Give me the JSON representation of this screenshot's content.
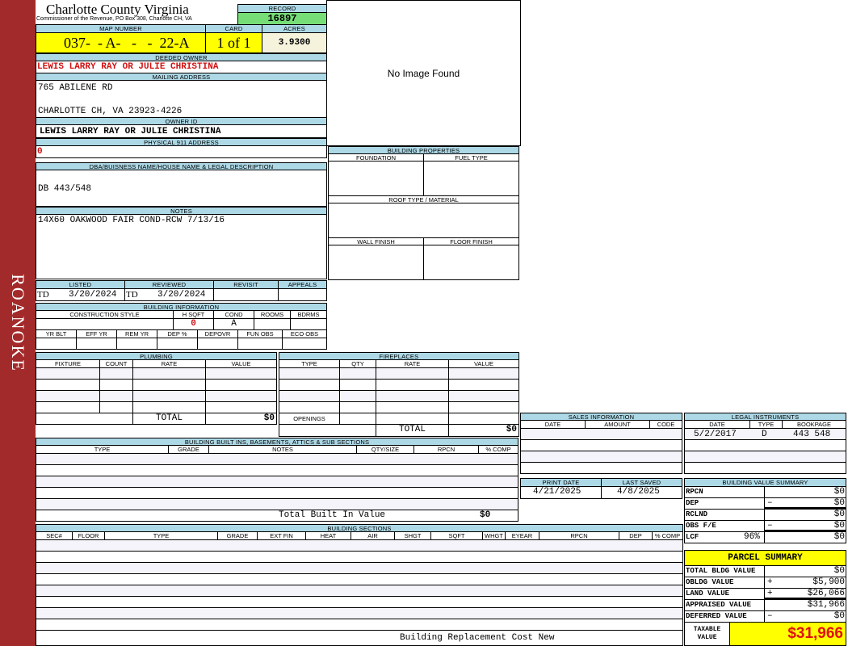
{
  "sidebar": {
    "label": "ROANOKE",
    "color": "#a32a2a"
  },
  "header": {
    "county": "Charlotte County Virginia",
    "office": "Commissioner of the Revenue, PO Box 308, Charlotte CH, VA"
  },
  "record": {
    "label": "RECORD",
    "value": "16897"
  },
  "map": {
    "label": "MAP NUMBER",
    "value": "037-  - A-   -   -  22-A"
  },
  "card": {
    "label": "CARD",
    "value": "1 of 1"
  },
  "acres": {
    "label": "ACRES",
    "value": "3.9300"
  },
  "deeded_owner": {
    "label": "DEEDED OWNER",
    "value": "LEWIS LARRY RAY OR JULIE CHRISTINA"
  },
  "mailing": {
    "label": "MAILING ADDRESS",
    "line1": "765 ABILENE RD",
    "line2": "CHARLOTTE CH, VA 23923-4226"
  },
  "owner_id": {
    "label": "OWNER ID",
    "value": "LEWIS LARRY RAY OR JULIE CHRISTINA"
  },
  "physical": {
    "label": "PHYSICAL 911 ADDRESS",
    "value": "0"
  },
  "image": {
    "text": "No Image Found"
  },
  "dba": {
    "label": "DBA/BUISNESS NAME/HOUSE NAME & LEGAL DESCRIPTION",
    "value": "DB 443/548"
  },
  "notes": {
    "label": "NOTES",
    "value": "14X60 OAKWOOD FAIR COND-RCW 7/13/16"
  },
  "building_properties": {
    "label": "BUILDING PROPERTIES",
    "foundation": "FOUNDATION",
    "fuel": "FUEL TYPE",
    "roof": "ROOF TYPE / MATERIAL",
    "wall": "WALL FINISH",
    "floor": "FLOOR FINISH"
  },
  "dates": {
    "listed_label": "LISTED",
    "listed_by": "TD",
    "listed": "3/20/2024",
    "reviewed_label": "REVIEWED",
    "reviewed_by": "TD",
    "reviewed": "3/20/2024",
    "revisit_label": "REVISIT",
    "appeals_label": "APPEALS"
  },
  "building_info": {
    "label": "BUILDING INFORMATION",
    "cols1": [
      "CONSTRUCTION STYLE",
      "H SQFT",
      "COND",
      "ROOMS",
      "BDRMS"
    ],
    "hsqft": "0",
    "cond": "A",
    "cols2": [
      "YR BLT",
      "EFF YR",
      "REM YR",
      "DEP %",
      "DEPOVR",
      "FUN OBS",
      "ECO OBS"
    ]
  },
  "plumbing": {
    "label": "PLUMBING",
    "cols": [
      "FIXTURE",
      "COUNT",
      "RATE",
      "VALUE"
    ],
    "total_label": "TOTAL",
    "total": "$0"
  },
  "fireplaces": {
    "label": "FIREPLACES",
    "cols": [
      "TYPE",
      "QTY",
      "RATE",
      "VALUE"
    ],
    "openings": "OPENINGS",
    "total_label": "TOTAL",
    "total": "$0"
  },
  "builtins": {
    "label": "BUILDING BUILT INS, BASEMENTS, ATTICS & SUB SECTIONS",
    "cols": [
      "TYPE",
      "GRADE",
      "NOTES",
      "QTY/SIZE",
      "RPCN",
      "% COMP"
    ],
    "total_label": "Total Built In Value",
    "total": "$0"
  },
  "sections": {
    "label": "BUILDING SECTIONS",
    "cols": [
      "SEC#",
      "FLOOR",
      "TYPE",
      "GRADE",
      "EXT FIN",
      "HEAT",
      "AIR",
      "SHGT",
      "SQFT",
      "WHGT",
      "EYEAR",
      "RPCN",
      "DEP",
      "% COMP"
    ],
    "footer": "Building Replacement Cost New"
  },
  "sales": {
    "label": "SALES INFORMATION",
    "cols": [
      "DATE",
      "AMOUNT",
      "CODE"
    ]
  },
  "legal": {
    "label": "LEGAL INSTRUMENTS",
    "cols": [
      "DATE",
      "TYPE",
      "BOOKPAGE"
    ],
    "rows": [
      {
        "date": "5/2/2017",
        "type": "D",
        "bookpage": "443 548"
      }
    ]
  },
  "print": {
    "print_label": "PRINT DATE",
    "print_date": "4/21/2025",
    "saved_label": "LAST SAVED",
    "last_saved": "4/8/2025"
  },
  "bvs": {
    "label": "BUILDING VALUE SUMMARY",
    "rows": [
      {
        "label": "RPCN",
        "sign": "",
        "value": "$0"
      },
      {
        "label": "DEP",
        "sign": "–",
        "value": "$0"
      },
      {
        "label": "RCLND",
        "sign": "",
        "value": "$0"
      },
      {
        "label": "OBS F/E",
        "sign": "–",
        "value": "$0"
      },
      {
        "label": "LCF",
        "pct": "96%",
        "sign": "",
        "value": "$0"
      }
    ]
  },
  "parcel": {
    "label": "PARCEL SUMMARY",
    "rows": [
      {
        "label": "TOTAL BLDG VALUE",
        "sign": "",
        "value": "$0"
      },
      {
        "label": "OBLDG VALUE",
        "sign": "+",
        "value": "$5,900"
      },
      {
        "label": "LAND VALUE",
        "sign": "+",
        "value": "$26,066"
      },
      {
        "label": "APPRAISED VALUE",
        "sign": "",
        "value": "$31,966"
      },
      {
        "label": "DEFERRED VALUE",
        "sign": "–",
        "value": "$0"
      }
    ],
    "taxable_label": "TAXABLE VALUE",
    "taxable": "$31,966"
  },
  "colors": {
    "header_bg": "#add8e6",
    "highlight": "#ffff00",
    "record_bg": "#77dd77",
    "accent_red": "#d01010"
  }
}
